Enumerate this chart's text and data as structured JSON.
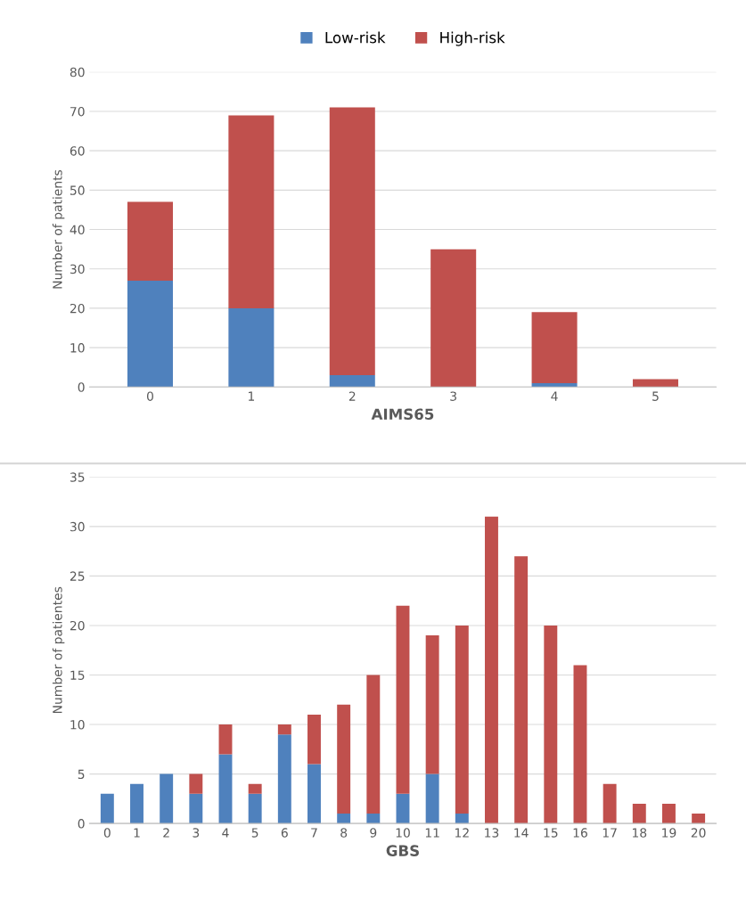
{
  "chart_data": [
    {
      "type": "bar",
      "stacked": true,
      "xlabel": "AIMS65",
      "ylabel": "Number of patients",
      "categories": [
        "0",
        "1",
        "2",
        "3",
        "4",
        "5"
      ],
      "series": [
        {
          "name": "Low-risk",
          "color": "#4f81bd",
          "values": [
            27,
            20,
            3,
            0,
            1,
            0
          ]
        },
        {
          "name": "High-risk",
          "color": "#c0504d",
          "values": [
            20,
            49,
            68,
            35,
            18,
            2
          ]
        }
      ],
      "ylim": [
        0,
        80
      ],
      "yticks": [
        0,
        10,
        20,
        30,
        40,
        50,
        60,
        70,
        80
      ],
      "grid": "y",
      "legend": "top"
    },
    {
      "type": "bar",
      "stacked": true,
      "xlabel": "GBS",
      "ylabel": "Number of patientes",
      "categories": [
        "0",
        "1",
        "2",
        "3",
        "4",
        "5",
        "6",
        "7",
        "8",
        "9",
        "10",
        "11",
        "12",
        "13",
        "14",
        "15",
        "16",
        "17",
        "18",
        "19",
        "20"
      ],
      "series": [
        {
          "color": "#4f81bd",
          "values": [
            3,
            4,
            5,
            3,
            7,
            3,
            9,
            6,
            1,
            1,
            3,
            5,
            1,
            0,
            0,
            0,
            0,
            0,
            0,
            0,
            0
          ]
        },
        {
          "color": "#c0504d",
          "values": [
            0,
            0,
            0,
            2,
            3,
            1,
            1,
            5,
            11,
            14,
            19,
            14,
            19,
            31,
            27,
            20,
            16,
            4,
            2,
            2,
            1
          ]
        }
      ],
      "ylim": [
        0,
        35
      ],
      "yticks": [
        0,
        5,
        10,
        15,
        20,
        25,
        30,
        35
      ],
      "grid": "y"
    }
  ]
}
